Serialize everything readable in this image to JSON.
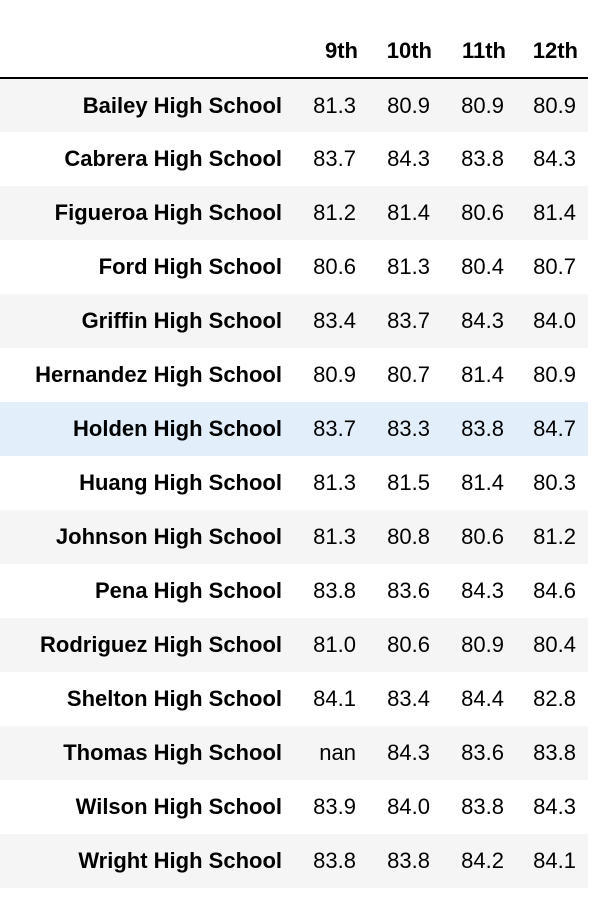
{
  "table": {
    "columns": [
      "9th",
      "10th",
      "11th",
      "12th"
    ],
    "highlighted_row": 6,
    "colors": {
      "stripe": "#f5f5f5",
      "hover": "#e3eefb",
      "header_rule": "#000000"
    },
    "rows": [
      {
        "school": "Bailey High School",
        "values": [
          "81.3",
          "80.9",
          "80.9",
          "80.9"
        ]
      },
      {
        "school": "Cabrera High School",
        "values": [
          "83.7",
          "84.3",
          "83.8",
          "84.3"
        ]
      },
      {
        "school": "Figueroa High School",
        "values": [
          "81.2",
          "81.4",
          "80.6",
          "81.4"
        ]
      },
      {
        "school": "Ford High School",
        "values": [
          "80.6",
          "81.3",
          "80.4",
          "80.7"
        ]
      },
      {
        "school": "Griffin High School",
        "values": [
          "83.4",
          "83.7",
          "84.3",
          "84.0"
        ]
      },
      {
        "school": "Hernandez High School",
        "values": [
          "80.9",
          "80.7",
          "81.4",
          "80.9"
        ]
      },
      {
        "school": "Holden High School",
        "values": [
          "83.7",
          "83.3",
          "83.8",
          "84.7"
        ]
      },
      {
        "school": "Huang High School",
        "values": [
          "81.3",
          "81.5",
          "81.4",
          "80.3"
        ]
      },
      {
        "school": "Johnson High School",
        "values": [
          "81.3",
          "80.8",
          "80.6",
          "81.2"
        ]
      },
      {
        "school": "Pena High School",
        "values": [
          "83.8",
          "83.6",
          "84.3",
          "84.6"
        ]
      },
      {
        "school": "Rodriguez High School",
        "values": [
          "81.0",
          "80.6",
          "80.9",
          "80.4"
        ]
      },
      {
        "school": "Shelton High School",
        "values": [
          "84.1",
          "83.4",
          "84.4",
          "82.8"
        ]
      },
      {
        "school": "Thomas High School",
        "values": [
          "nan",
          "84.3",
          "83.6",
          "83.8"
        ]
      },
      {
        "school": "Wilson High School",
        "values": [
          "83.9",
          "84.0",
          "83.8",
          "84.3"
        ]
      },
      {
        "school": "Wright High School",
        "values": [
          "83.8",
          "83.8",
          "84.2",
          "84.1"
        ]
      }
    ]
  }
}
